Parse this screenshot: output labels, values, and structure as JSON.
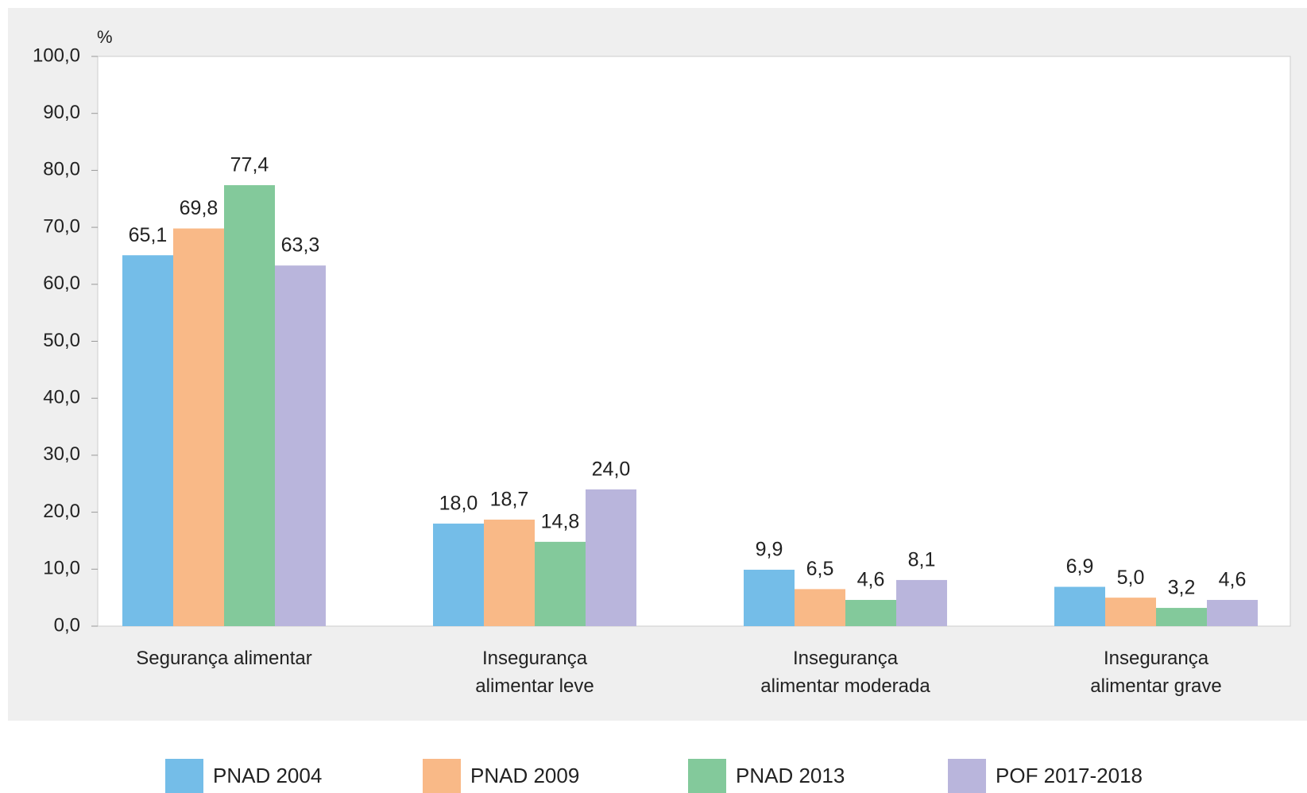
{
  "chart_data": {
    "type": "bar",
    "y_unit": "%",
    "categories": [
      "Segurança alimentar",
      "Insegurança\nalimentar leve",
      "Insegurança\nalimentar moderada",
      "Insegurança\nalimentar grave"
    ],
    "series": [
      {
        "name": "PNAD 2004",
        "color": "#74bde8",
        "values": [
          65.1,
          18.0,
          9.9,
          6.9
        ],
        "value_labels": [
          "65,1",
          "18,0",
          "9,9",
          "6,9"
        ]
      },
      {
        "name": "PNAD 2009",
        "color": "#f9b987",
        "values": [
          69.8,
          18.7,
          6.5,
          5.0
        ],
        "value_labels": [
          "69,8",
          "18,7",
          "6,5",
          "5,0"
        ]
      },
      {
        "name": "PNAD 2013",
        "color": "#83c99b",
        "values": [
          77.4,
          14.8,
          4.6,
          3.2
        ],
        "value_labels": [
          "77,4",
          "14,8",
          "4,6",
          "3,2"
        ]
      },
      {
        "name": "POF 2017-2018",
        "color": "#b9b5dc",
        "values": [
          63.3,
          24.0,
          8.1,
          4.6
        ],
        "value_labels": [
          "63,3",
          "24,0",
          "8,1",
          "4,6"
        ]
      }
    ],
    "ylim": [
      0,
      100
    ],
    "yticks": [
      {
        "value": 0,
        "label": "0,0"
      },
      {
        "value": 10,
        "label": "10,0"
      },
      {
        "value": 20,
        "label": "20,0"
      },
      {
        "value": 30,
        "label": "30,0"
      },
      {
        "value": 40,
        "label": "40,0"
      },
      {
        "value": 50,
        "label": "50,0"
      },
      {
        "value": 60,
        "label": "60,0"
      },
      {
        "value": 70,
        "label": "70,0"
      },
      {
        "value": 80,
        "label": "80,0"
      },
      {
        "value": 90,
        "label": "90,0"
      },
      {
        "value": 100,
        "label": "100,0"
      }
    ],
    "legend": "bottom"
  }
}
